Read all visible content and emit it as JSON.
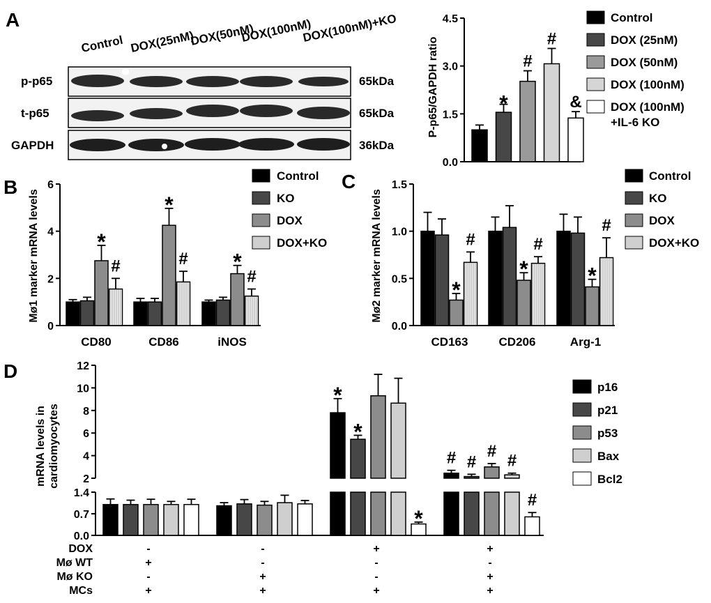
{
  "colors": {
    "control": "#000000",
    "ko": "#474747",
    "dox": "#8c8c8c",
    "doxko": "#cfcfcf",
    "white": "#ffffff",
    "c100": "#d5d5d5",
    "c50": "#9a9a9a"
  },
  "panel_a": {
    "letter": "A",
    "lane_labels": [
      "Control",
      "DOX(25nM)",
      "DOX(50nM)",
      "DOX(100nM)",
      "DOX(100nM)+KO"
    ],
    "rows": [
      {
        "label": "p-p65",
        "size": "65kDa"
      },
      {
        "label": "t-p65",
        "size": "65kDa"
      },
      {
        "label": "GAPDH",
        "size": "36kDa"
      }
    ]
  },
  "chart_data": [
    {
      "id": "a",
      "type": "bar",
      "ylabel": "P-p65/GAPDH ratio",
      "ylim": [
        0,
        4.5
      ],
      "yticks": [
        0.0,
        1.5,
        3.0,
        4.5
      ],
      "ytick_labels": [
        "0.0",
        "1.5",
        "3.0",
        "4.5"
      ],
      "series": [
        {
          "name": "Control",
          "value": 1.0,
          "error": 0.15,
          "mark": ""
        },
        {
          "name": "DOX (25nM)",
          "value": 1.55,
          "error": 0.25,
          "mark": "*"
        },
        {
          "name": "DOX (50nM)",
          "value": 2.52,
          "error": 0.33,
          "mark": "#"
        },
        {
          "name": "DOX (100nM)",
          "value": 3.07,
          "error": 0.48,
          "mark": "#"
        },
        {
          "name": "DOX (100nM)\n+IL-6 KO",
          "value": 1.37,
          "error": 0.2,
          "mark": "&"
        }
      ],
      "legend": [
        "Control",
        "DOX (25nM)",
        "DOX (50nM)",
        "DOX (100nM)",
        "DOX (100nM)",
        "+IL-6 KO"
      ]
    },
    {
      "id": "b",
      "letter": "B",
      "type": "bar",
      "ylabel": "Mø1 marker mRNA levels",
      "ylim": [
        0,
        6
      ],
      "yticks": [
        0,
        2,
        4,
        6
      ],
      "ytick_labels": [
        "0",
        "2",
        "4",
        "6"
      ],
      "categories": [
        "CD80",
        "CD86",
        "iNOS"
      ],
      "series": [
        {
          "name": "Control",
          "values": [
            1.0,
            1.0,
            1.0
          ],
          "errors": [
            0.1,
            0.15,
            0.08
          ]
        },
        {
          "name": "KO",
          "values": [
            1.05,
            1.0,
            1.08
          ],
          "errors": [
            0.15,
            0.15,
            0.12
          ]
        },
        {
          "name": "DOX",
          "values": [
            2.75,
            4.25,
            2.2
          ],
          "errors": [
            0.65,
            0.72,
            0.35
          ]
        },
        {
          "name": "DOX+KO",
          "values": [
            1.55,
            1.85,
            1.25
          ],
          "errors": [
            0.45,
            0.45,
            0.3
          ]
        }
      ],
      "marks": [
        {
          "category": 0,
          "series": 2,
          "symbol": "*"
        },
        {
          "category": 0,
          "series": 3,
          "symbol": "#"
        },
        {
          "category": 1,
          "series": 2,
          "symbol": "*"
        },
        {
          "category": 1,
          "series": 3,
          "symbol": "#"
        },
        {
          "category": 2,
          "series": 2,
          "symbol": "*"
        },
        {
          "category": 2,
          "series": 3,
          "symbol": "#"
        }
      ],
      "legend": [
        "Control",
        "KO",
        "DOX",
        "DOX+KO"
      ]
    },
    {
      "id": "c",
      "letter": "C",
      "type": "bar",
      "ylabel": "Mø2 marker mRNA levels",
      "ylim": [
        0,
        1.5
      ],
      "yticks": [
        0.0,
        0.5,
        1.0,
        1.5
      ],
      "ytick_labels": [
        "0.0",
        "0.5",
        "1.0",
        "1.5"
      ],
      "categories": [
        "CD163",
        "CD206",
        "Arg-1"
      ],
      "series": [
        {
          "name": "Control",
          "values": [
            1.0,
            1.0,
            1.0
          ],
          "errors": [
            0.2,
            0.15,
            0.18
          ]
        },
        {
          "name": "KO",
          "values": [
            0.96,
            1.04,
            0.98
          ],
          "errors": [
            0.17,
            0.23,
            0.17
          ]
        },
        {
          "name": "DOX",
          "values": [
            0.27,
            0.48,
            0.41
          ],
          "errors": [
            0.07,
            0.08,
            0.08
          ]
        },
        {
          "name": "DOX+KO",
          "values": [
            0.67,
            0.66,
            0.72
          ],
          "errors": [
            0.11,
            0.07,
            0.21
          ]
        }
      ],
      "marks": [
        {
          "category": 0,
          "series": 2,
          "symbol": "*"
        },
        {
          "category": 0,
          "series": 3,
          "symbol": "#"
        },
        {
          "category": 1,
          "series": 2,
          "symbol": "*"
        },
        {
          "category": 1,
          "series": 3,
          "symbol": "#"
        },
        {
          "category": 2,
          "series": 2,
          "symbol": "*"
        },
        {
          "category": 2,
          "series": 3,
          "symbol": "#"
        }
      ],
      "legend": [
        "Control",
        "KO",
        "DOX",
        "DOX+KO"
      ]
    },
    {
      "id": "d",
      "letter": "D",
      "type": "bar",
      "ylabel": [
        "mRNA levels in",
        "cardiomyocytes"
      ],
      "axis_break": {
        "lower": [
          0,
          1.4
        ],
        "upper": [
          2,
          12
        ]
      },
      "yticks_lower": [
        0.0,
        0.7,
        1.4
      ],
      "ytick_labels_lower": [
        "0.0",
        "0.7",
        "1.4"
      ],
      "yticks_upper": [
        2,
        4,
        6,
        8,
        10,
        12
      ],
      "ytick_labels_upper": [
        "2",
        "4",
        "6",
        "8",
        "10",
        "12"
      ],
      "groups": 4,
      "series": [
        {
          "name": "p16",
          "values": [
            1.0,
            0.96,
            7.8,
            2.45
          ],
          "errors": [
            0.18,
            0.1,
            1.25,
            0.25
          ]
        },
        {
          "name": "p21",
          "values": [
            1.0,
            1.02,
            5.45,
            2.15
          ],
          "errors": [
            0.14,
            0.14,
            0.35,
            0.2
          ]
        },
        {
          "name": "p53",
          "values": [
            1.0,
            0.98,
            9.3,
            3.0
          ],
          "errors": [
            0.17,
            0.12,
            1.9,
            0.3
          ]
        },
        {
          "name": "Bax",
          "values": [
            1.0,
            1.06,
            8.65,
            2.3
          ],
          "errors": [
            0.1,
            0.24,
            2.2,
            0.15
          ]
        },
        {
          "name": "Bcl2",
          "values": [
            1.0,
            1.02,
            0.37,
            0.6
          ],
          "errors": [
            0.17,
            0.11,
            0.06,
            0.14
          ]
        }
      ],
      "marks": [
        {
          "group": 2,
          "series": 0,
          "symbol": "*"
        },
        {
          "group": 2,
          "series": 1,
          "symbol": "*"
        },
        {
          "group": 2,
          "series": 4,
          "symbol": "*"
        },
        {
          "group": 3,
          "series": 0,
          "symbol": "#"
        },
        {
          "group": 3,
          "series": 1,
          "symbol": "#"
        },
        {
          "group": 3,
          "series": 2,
          "symbol": "#"
        },
        {
          "group": 3,
          "series": 3,
          "symbol": "#"
        },
        {
          "group": 3,
          "series": 4,
          "symbol": "#"
        }
      ],
      "conditions": [
        {
          "label": "DOX",
          "values": [
            "-",
            "-",
            "+",
            "+"
          ]
        },
        {
          "label": "Mø WT",
          "values": [
            "+",
            "-",
            "-",
            "-"
          ]
        },
        {
          "label": "Mø KO",
          "values": [
            "-",
            "+",
            "-",
            "+"
          ]
        },
        {
          "label": "MCs",
          "values": [
            "+",
            "+",
            "+",
            "+"
          ]
        }
      ],
      "legend": [
        "p16",
        "p21",
        "p53",
        "Bax",
        "Bcl2"
      ]
    }
  ]
}
